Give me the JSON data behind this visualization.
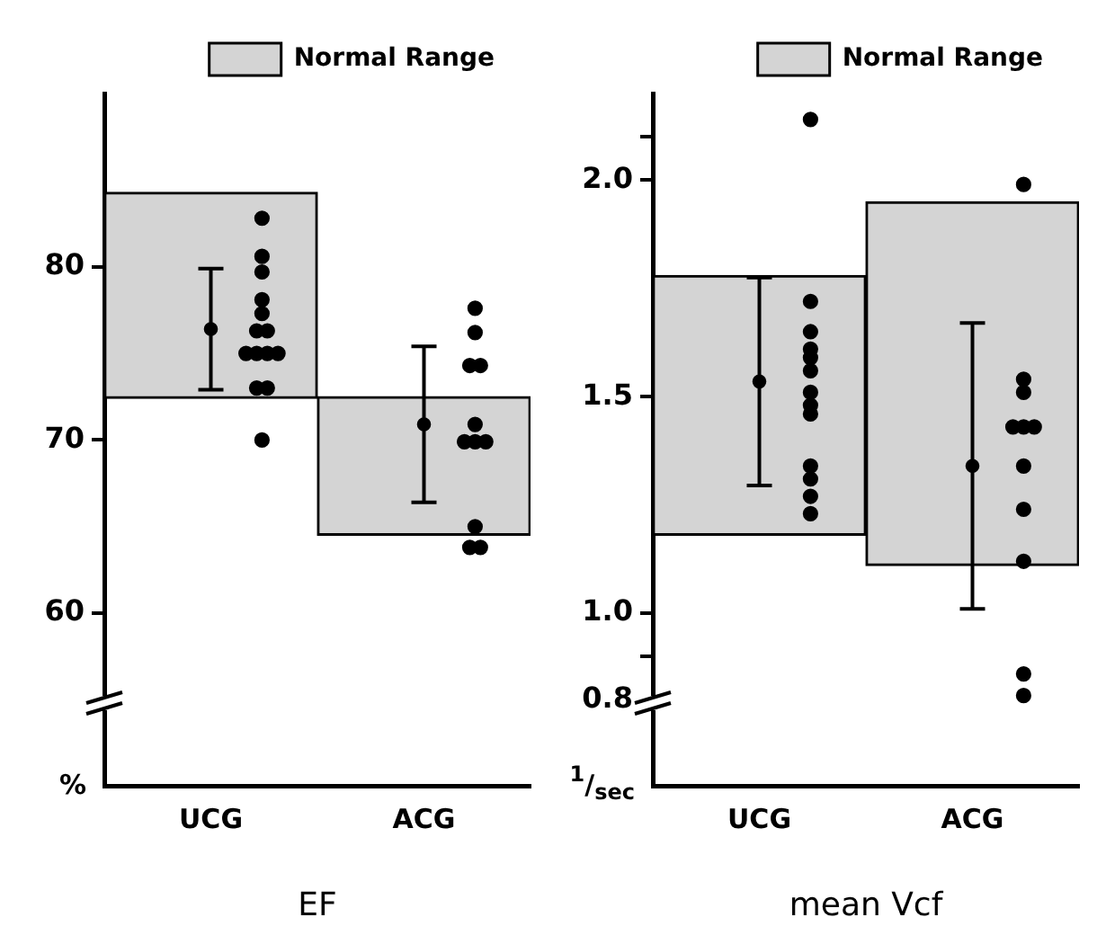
{
  "chart_data": [
    {
      "type": "bar",
      "xlabel": "EF",
      "ylabel": "%",
      "categories": [
        "UCG",
        "ACG"
      ],
      "ylim": [
        50,
        90
      ],
      "yticks": [
        60,
        70,
        80
      ],
      "legend": "top right",
      "grid": false,
      "series": [
        {
          "name": "Normal Range",
          "color": "#d4d4d4",
          "base": [
            72.4,
            64.5
          ],
          "values": [
            11.9,
            8.0
          ]
        },
        {
          "type": "scatter",
          "marker": "circle",
          "color": "#000000",
          "x": [
            "UCG",
            "ACG"
          ],
          "values": [
            76.4,
            70.9
          ],
          "errors": [
            3.5,
            4.5
          ]
        },
        {
          "type": "scatter",
          "marker": "circle",
          "color": "#000000",
          "x": [
            "UCG",
            "UCG",
            "UCG",
            "UCG",
            "UCG",
            "UCG",
            "UCG",
            "UCG",
            "UCG",
            "UCG",
            "UCG",
            "UCG",
            "UCG",
            "UCG",
            "ACG",
            "ACG",
            "ACG",
            "ACG",
            "ACG",
            "ACG",
            "ACG",
            "ACG",
            "ACG",
            "ACG",
            "ACG"
          ],
          "values": [
            82.8,
            80.6,
            79.7,
            78.1,
            77.3,
            76.3,
            76.3,
            75.0,
            75.0,
            75.0,
            75.0,
            73.0,
            73.0,
            70.0,
            77.6,
            76.2,
            74.3,
            74.3,
            70.9,
            69.9,
            69.9,
            69.9,
            65.0,
            63.8,
            63.8
          ]
        }
      ]
    },
    {
      "type": "bar",
      "xlabel": "mean Vcf",
      "ylabel": "$^{1}$/$_{sec}$",
      "categories": [
        "UCG",
        "ACG"
      ],
      "ylim": [
        0.6,
        2.2
      ],
      "yticks": [
        0.8,
        {
          "value": 0.9,
          "label": null
        },
        {
          "value": 1,
          "label": "1.0"
        },
        1.5,
        {
          "value": 2,
          "label": "2.0"
        },
        {
          "value": 2.1,
          "label": null
        }
      ],
      "legend": "top right",
      "grid": false,
      "series": [
        {
          "name": "Normal Range",
          "color": "#d4d4d4",
          "base": [
            1.18,
            1.11
          ],
          "values": [
            0.6,
            0.84
          ]
        },
        {
          "type": "scatter",
          "marker": "circle",
          "color": "#000000",
          "x": [
            "UCG",
            "ACG"
          ],
          "values": [
            1.535,
            1.34
          ],
          "errors": [
            0.24,
            0.33
          ]
        },
        {
          "type": "scatter",
          "marker": "circle",
          "color": "#000000",
          "x": [
            "UCG",
            "UCG",
            "UCG",
            "UCG",
            "UCG",
            "UCG",
            "UCG",
            "UCG",
            "UCG",
            "UCG",
            "UCG",
            "UCG",
            "UCG",
            "ACG",
            "ACG",
            "ACG",
            "ACG",
            "ACG",
            "ACG",
            "ACG",
            "ACG",
            "ACG",
            "ACG",
            "ACG"
          ],
          "values": [
            2.14,
            1.72,
            1.65,
            1.61,
            1.59,
            1.56,
            1.51,
            1.48,
            1.46,
            1.34,
            1.31,
            1.27,
            1.23,
            1.99,
            1.54,
            1.51,
            1.43,
            1.43,
            1.43,
            1.34,
            1.24,
            1.12,
            0.86,
            0.81
          ]
        }
      ]
    }
  ]
}
